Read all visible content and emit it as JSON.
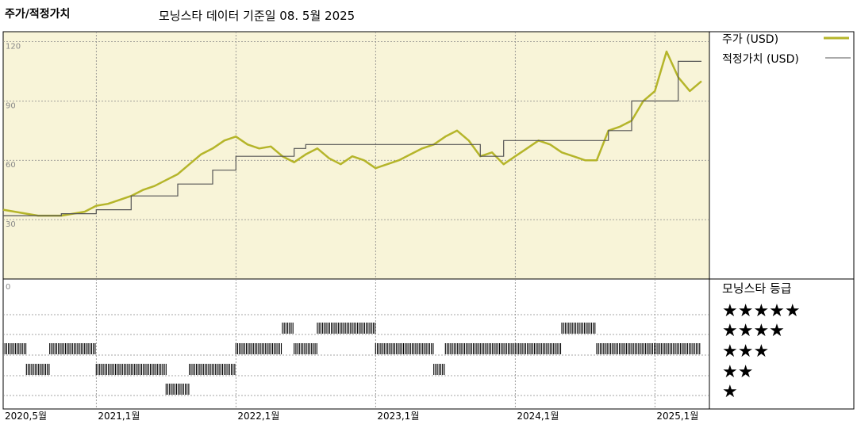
{
  "header": {
    "title": "주가/적정가치",
    "subtitle": "모닝스타 데이터 기준일 08. 5월 2025"
  },
  "legend": {
    "price_label": "주가 (USD)",
    "fair_value_label": "적정가치 (USD)",
    "rating_label": "모닝스타 등급"
  },
  "colors": {
    "price": "#b5b52a",
    "fair_value": "#555555",
    "plot_bg": "#f8f4d8",
    "grid": "#888888",
    "bars": "#000000"
  },
  "chart_data": {
    "type": "line",
    "x_unit": "month",
    "x_ticks": [
      "2020,5월",
      "2021,1월",
      "2022,1월",
      "2023,1월",
      "2024,1월",
      "2025,1월"
    ],
    "x_tick_dates": [
      "2020-05",
      "2021-01",
      "2022-01",
      "2023-01",
      "2024-01",
      "2025-01"
    ],
    "x_range": [
      "2020-05",
      "2025-05"
    ],
    "y_ticks": [
      120,
      90,
      60,
      30,
      0
    ],
    "ylim": [
      0,
      125
    ],
    "grid": true,
    "series": [
      {
        "name": "주가 (USD)",
        "points": [
          [
            "2020-05",
            35
          ],
          [
            "2020-06",
            34
          ],
          [
            "2020-07",
            33
          ],
          [
            "2020-08",
            32
          ],
          [
            "2020-09",
            32
          ],
          [
            "2020-10",
            32
          ],
          [
            "2020-11",
            33
          ],
          [
            "2020-12",
            34
          ],
          [
            "2021-01",
            37
          ],
          [
            "2021-02",
            38
          ],
          [
            "2021-03",
            40
          ],
          [
            "2021-04",
            42
          ],
          [
            "2021-05",
            45
          ],
          [
            "2021-06",
            47
          ],
          [
            "2021-07",
            50
          ],
          [
            "2021-08",
            53
          ],
          [
            "2021-09",
            58
          ],
          [
            "2021-10",
            63
          ],
          [
            "2021-11",
            66
          ],
          [
            "2021-12",
            70
          ],
          [
            "2022-01",
            72
          ],
          [
            "2022-02",
            68
          ],
          [
            "2022-03",
            66
          ],
          [
            "2022-04",
            67
          ],
          [
            "2022-05",
            62
          ],
          [
            "2022-06",
            59
          ],
          [
            "2022-07",
            63
          ],
          [
            "2022-08",
            66
          ],
          [
            "2022-09",
            61
          ],
          [
            "2022-10",
            58
          ],
          [
            "2022-11",
            62
          ],
          [
            "2022-12",
            60
          ],
          [
            "2023-01",
            56
          ],
          [
            "2023-02",
            58
          ],
          [
            "2023-03",
            60
          ],
          [
            "2023-04",
            63
          ],
          [
            "2023-05",
            66
          ],
          [
            "2023-06",
            68
          ],
          [
            "2023-07",
            72
          ],
          [
            "2023-08",
            75
          ],
          [
            "2023-09",
            70
          ],
          [
            "2023-10",
            62
          ],
          [
            "2023-11",
            64
          ],
          [
            "2023-12",
            58
          ],
          [
            "2024-01",
            62
          ],
          [
            "2024-02",
            66
          ],
          [
            "2024-03",
            70
          ],
          [
            "2024-04",
            68
          ],
          [
            "2024-05",
            64
          ],
          [
            "2024-06",
            62
          ],
          [
            "2024-07",
            60
          ],
          [
            "2024-08",
            60
          ],
          [
            "2024-09",
            75
          ],
          [
            "2024-10",
            77
          ],
          [
            "2024-11",
            80
          ],
          [
            "2024-12",
            90
          ],
          [
            "2025-01",
            95
          ],
          [
            "2025-02",
            115
          ],
          [
            "2025-03",
            102
          ],
          [
            "2025-04",
            95
          ],
          [
            "2025-05",
            100
          ]
        ]
      },
      {
        "name": "적정가치 (USD)",
        "points": [
          [
            "2020-05",
            32
          ],
          [
            "2020-10",
            33
          ],
          [
            "2021-01",
            35
          ],
          [
            "2021-04",
            42
          ],
          [
            "2021-08",
            48
          ],
          [
            "2021-11",
            55
          ],
          [
            "2022-01",
            62
          ],
          [
            "2022-06",
            66
          ],
          [
            "2022-07",
            68
          ],
          [
            "2023-08",
            68
          ],
          [
            "2023-09",
            68
          ],
          [
            "2023-10",
            62
          ],
          [
            "2023-11",
            62
          ],
          [
            "2023-12",
            70
          ],
          [
            "2024-06",
            70
          ],
          [
            "2024-09",
            75
          ],
          [
            "2024-11",
            90
          ],
          [
            "2025-02",
            90
          ],
          [
            "2025-03",
            110
          ],
          [
            "2025-05",
            110
          ]
        ]
      }
    ],
    "ratings": {
      "levels": [
        "★★★★★",
        "★★★★",
        "★★★",
        "★★",
        "★"
      ],
      "periods": [
        {
          "stars": 3,
          "start": "2020-05",
          "end": "2020-07"
        },
        {
          "stars": 2,
          "start": "2020-07",
          "end": "2020-09"
        },
        {
          "stars": 3,
          "start": "2020-09",
          "end": "2021-01"
        },
        {
          "stars": 2,
          "start": "2021-01",
          "end": "2021-07"
        },
        {
          "stars": 1,
          "start": "2021-07",
          "end": "2021-09"
        },
        {
          "stars": 2,
          "start": "2021-09",
          "end": "2022-01"
        },
        {
          "stars": 3,
          "start": "2022-01",
          "end": "2022-05"
        },
        {
          "stars": 4,
          "start": "2022-05",
          "end": "2022-06"
        },
        {
          "stars": 3,
          "start": "2022-06",
          "end": "2022-08"
        },
        {
          "stars": 4,
          "start": "2022-08",
          "end": "2023-01"
        },
        {
          "stars": 3,
          "start": "2023-01",
          "end": "2023-06"
        },
        {
          "stars": 2,
          "start": "2023-06",
          "end": "2023-07"
        },
        {
          "stars": 3,
          "start": "2023-07",
          "end": "2024-05"
        },
        {
          "stars": 4,
          "start": "2024-05",
          "end": "2024-08"
        },
        {
          "stars": 3,
          "start": "2024-08",
          "end": "2025-05"
        }
      ]
    }
  }
}
